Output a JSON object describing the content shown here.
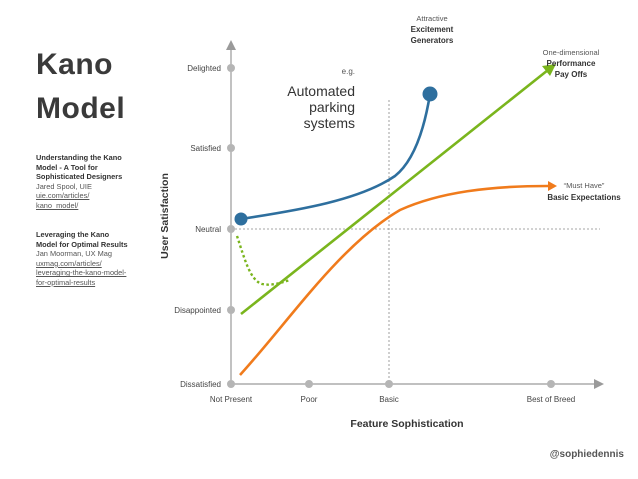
{
  "title": {
    "line1": "Kano",
    "line2": "Model"
  },
  "references": [
    {
      "title_lines": [
        "Understanding the Kano",
        "Model - A Tool for",
        "Sophisticated Designers"
      ],
      "author": "Jared Spool, UIE",
      "link_lines": [
        "uie.com/articles/",
        "kano_model/"
      ]
    },
    {
      "title_lines": [
        "Leveraging the Kano",
        "Model for Optimal Results"
      ],
      "author": "Jan Moorman, UX Mag",
      "link_lines": [
        "uxmag.com/articles/",
        "leveraging-the-kano-model-",
        "for-optimal-results"
      ]
    }
  ],
  "axes": {
    "y_title": "User Satisfaction",
    "y_ticks": [
      "Delighted",
      "Satisfied",
      "Neutral",
      "Disappointed",
      "Dissatisfied"
    ],
    "x_title": "Feature Sophistication",
    "x_ticks": [
      "Not Present",
      "Poor",
      "Basic",
      "Best of Breed"
    ]
  },
  "callouts": {
    "eg": "e.g.",
    "automated_lines": [
      "Automated",
      "parking",
      "systems"
    ],
    "attractive": {
      "line1": "Attractive",
      "line2": "Excitement",
      "line3": "Generators"
    },
    "performance": {
      "line1": "One-dimensional",
      "line2": "Performance",
      "line3": "Pay Offs"
    },
    "must_have": {
      "line1": "“Must Have”",
      "line2": "Basic Expectations"
    }
  },
  "credit": "@sophiedennis",
  "colors": {
    "attractive": "#2e6f9e",
    "performance": "#7ab51d",
    "must_have": "#f07b1c",
    "axis": "#9a9a9a",
    "tick_dot": "#b5b5b5"
  }
}
